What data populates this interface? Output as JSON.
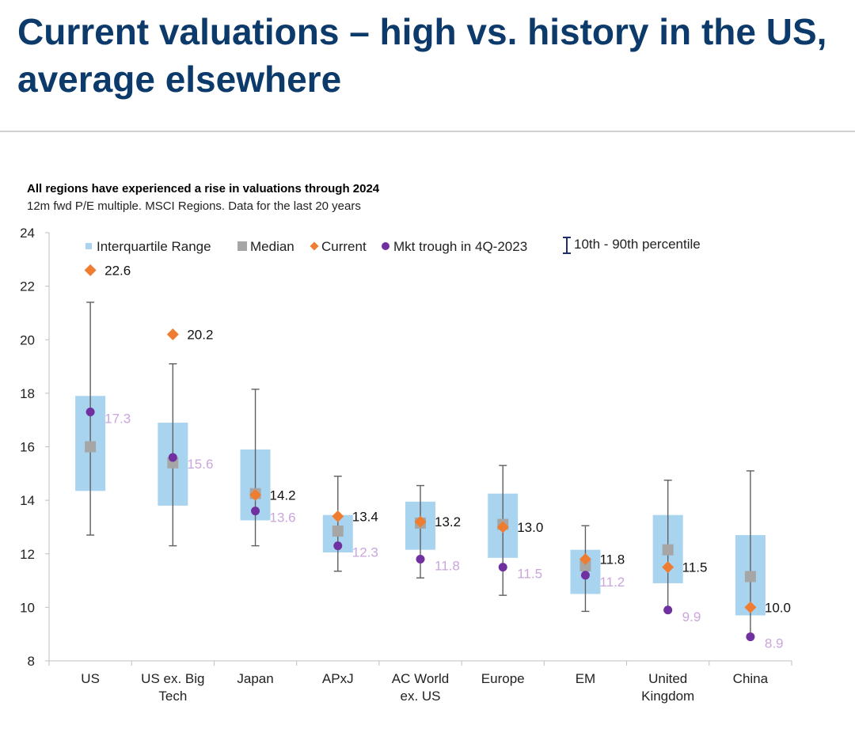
{
  "page": {
    "title": "Current valuations – high vs. history in the US, average elsewhere"
  },
  "chart_data": {
    "type": "box",
    "title": "All regions have experienced a rise in valuations through 2024",
    "subtitle": "12m fwd P/E multiple. MSCI Regions. Data for the last 20 years",
    "xlabel": "",
    "ylabel": "",
    "ylim": [
      8,
      24
    ],
    "yticks": [
      8,
      10,
      12,
      14,
      16,
      18,
      20,
      22,
      24
    ],
    "grid": false,
    "legend": {
      "placement": "top",
      "iqr": "Interquartile Range",
      "median": "Median",
      "current": "Current",
      "trough": "Mkt trough in 4Q-2023",
      "percentile": "10th - 90th percentile"
    },
    "colors": {
      "iqr": "#a9d4f0",
      "median": "#a6a6a6",
      "current": "#ee7d31",
      "trough": "#7030a0",
      "trough_label": "#c9a6dc",
      "whisker": "#606060"
    },
    "categories": [
      {
        "name": "US",
        "label_lines": [
          "US"
        ],
        "p10": 12.7,
        "q1": 14.35,
        "median": 16.0,
        "q3": 17.9,
        "p90": 21.4,
        "current": 22.6,
        "current_label": "22.6",
        "trough": 17.3,
        "trough_label": "17.3"
      },
      {
        "name": "US ex. Big Tech",
        "label_lines": [
          "US ex. Big",
          "Tech"
        ],
        "p10": 12.3,
        "q1": 13.8,
        "median": 15.4,
        "q3": 16.9,
        "p90": 19.1,
        "current": 20.2,
        "current_label": "20.2",
        "trough": 15.6,
        "trough_label": "15.6"
      },
      {
        "name": "Japan",
        "label_lines": [
          "Japan"
        ],
        "p10": 12.3,
        "q1": 13.25,
        "median": 14.25,
        "q3": 15.9,
        "p90": 18.15,
        "current": 14.2,
        "current_label": "14.2",
        "trough": 13.6,
        "trough_label": "13.6"
      },
      {
        "name": "APxJ",
        "label_lines": [
          "APxJ"
        ],
        "p10": 11.35,
        "q1": 12.05,
        "median": 12.85,
        "q3": 13.45,
        "p90": 14.9,
        "current": 13.4,
        "current_label": "13.4",
        "trough": 12.3,
        "trough_label": "12.3"
      },
      {
        "name": "AC World ex. US",
        "label_lines": [
          "AC World",
          "ex. US"
        ],
        "p10": 11.1,
        "q1": 12.15,
        "median": 13.15,
        "q3": 13.95,
        "p90": 14.55,
        "current": 13.2,
        "current_label": "13.2",
        "trough": 11.8,
        "trough_label": "11.8"
      },
      {
        "name": "Europe",
        "label_lines": [
          "Europe"
        ],
        "p10": 10.45,
        "q1": 11.85,
        "median": 13.1,
        "q3": 14.25,
        "p90": 15.3,
        "current": 13.0,
        "current_label": "13.0",
        "trough": 11.5,
        "trough_label": "11.5"
      },
      {
        "name": "EM",
        "label_lines": [
          "EM"
        ],
        "p10": 9.85,
        "q1": 10.5,
        "median": 11.55,
        "q3": 12.15,
        "p90": 13.05,
        "current": 11.8,
        "current_label": "11.8",
        "trough": 11.2,
        "trough_label": "11.2"
      },
      {
        "name": "United Kingdom",
        "label_lines": [
          "United",
          "Kingdom"
        ],
        "p10": 9.9,
        "q1": 10.9,
        "median": 12.15,
        "q3": 13.45,
        "p90": 14.75,
        "current": 11.5,
        "current_label": "11.5",
        "trough": 9.9,
        "trough_label": "9.9"
      },
      {
        "name": "China",
        "label_lines": [
          "China"
        ],
        "p10": 8.9,
        "q1": 9.7,
        "median": 11.15,
        "q3": 12.7,
        "p90": 15.1,
        "current": 10.0,
        "current_label": "10.0",
        "trough": 8.9,
        "trough_label": "8.9"
      }
    ]
  }
}
